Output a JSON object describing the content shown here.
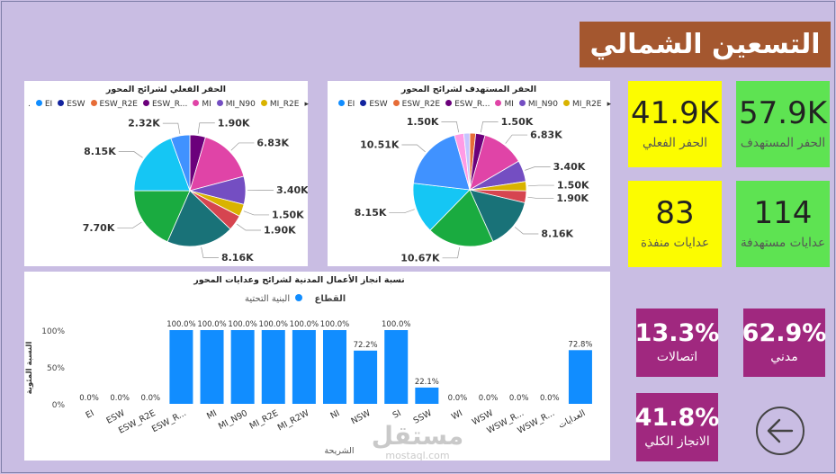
{
  "page_title": "التسعين الشمالي",
  "colors": {
    "EI": "#118dff",
    "ESW": "#12239e",
    "ESW_R2E": "#e66c37",
    "ESW_R2W": "#6b007b",
    "MI": "#e044a7",
    "MI_N90": "#744ec2",
    "MI_R2E": "#d9b300",
    "MI_R2W": "#d64550",
    "NI": "#197278",
    "NSW": "#1aab40",
    "SI": "#15c6f4",
    "SSW": "#4092ff",
    "WI": "#ff9be5",
    "WSW": "#c5c5ff",
    "bar": "#118dff"
  },
  "kpis": [
    {
      "value": "57.9K",
      "label": "الحفر المستهدف"
    },
    {
      "value": "41.9K",
      "label": "الحفر الفعلي"
    },
    {
      "value": "114",
      "label": "عدايات مستهدفة"
    },
    {
      "value": "83",
      "label": "عدايات منفذة"
    },
    {
      "value": "62.9%",
      "label": "مدني"
    },
    {
      "value": "13.3%",
      "label": "اتصالات"
    },
    {
      "value": "41.8%",
      "label": "الانجاز الكلي"
    }
  ],
  "watermark": {
    "main": "مستقل",
    "sub": "mostaql.com"
  },
  "chart_data": [
    {
      "type": "pie",
      "title": "الحفر الفعلي لشرائح المحور",
      "legend_items": [
        "EI",
        "ESW",
        "ESW_R2E",
        "ESW_R...",
        "MI",
        "MI_N90",
        "MI_R2E"
      ],
      "legend_lead": ".",
      "legend_more": "▸",
      "slices": [
        {
          "name": "EI",
          "value": 0,
          "label": ""
        },
        {
          "name": "ESW",
          "value": 0,
          "label": ""
        },
        {
          "name": "ESW_R2E",
          "value": 0,
          "label": ""
        },
        {
          "name": "ESW_R2W",
          "value": 1.9,
          "label": "1.90K"
        },
        {
          "name": "MI",
          "value": 6.83,
          "label": "6.83K"
        },
        {
          "name": "MI_N90",
          "value": 3.4,
          "label": "3.40K"
        },
        {
          "name": "MI_R2E",
          "value": 1.5,
          "label": "1.50K"
        },
        {
          "name": "MI_R2W",
          "value": 1.9,
          "label": "1.90K"
        },
        {
          "name": "NI",
          "value": 8.16,
          "label": "8.16K"
        },
        {
          "name": "NSW",
          "value": 7.7,
          "label": "7.70K"
        },
        {
          "name": "SI",
          "value": 8.15,
          "label": "8.15K"
        },
        {
          "name": "SSW",
          "value": 2.32,
          "label": "2.32K"
        }
      ]
    },
    {
      "type": "pie",
      "title": "الحفر المستهدف لشرائح المحور",
      "legend_items": [
        "EI",
        "ESW",
        "ESW_R2E",
        "ESW_R...",
        "MI",
        "MI_N90",
        "MI_R2E"
      ],
      "legend_lead": "",
      "legend_more": "▸",
      "slices": [
        {
          "name": "EI",
          "value": 0,
          "label": ""
        },
        {
          "name": "ESW",
          "value": 0,
          "label": ""
        },
        {
          "name": "ESW_R2E",
          "value": 0.95,
          "label": ""
        },
        {
          "name": "ESW_R2W",
          "value": 1.5,
          "label": "1.50K"
        },
        {
          "name": "MI",
          "value": 6.83,
          "label": "6.83K"
        },
        {
          "name": "MI_N90",
          "value": 3.4,
          "label": "3.40K"
        },
        {
          "name": "MI_R2E",
          "value": 1.5,
          "label": "1.50K"
        },
        {
          "name": "MI_R2W",
          "value": 1.9,
          "label": "1.90K"
        },
        {
          "name": "NI",
          "value": 8.16,
          "label": "8.16K"
        },
        {
          "name": "NSW",
          "value": 10.67,
          "label": "10.67K"
        },
        {
          "name": "SI",
          "value": 8.15,
          "label": "8.15K"
        },
        {
          "name": "SSW",
          "value": 10.51,
          "label": "10.51K"
        },
        {
          "name": "WI",
          "value": 1.5,
          "label": "1.50K"
        },
        {
          "name": "WSW",
          "value": 0.95,
          "label": ""
        }
      ]
    },
    {
      "type": "bar",
      "title": "نسبة انجاز الأعمال المدنية لشرائح وعدايات المحور",
      "legend_title": "القطاع",
      "series_name": "البنية التحتية",
      "xlabel": "الشريحة",
      "ylabel": "النسبة المئوية",
      "yticks": [
        "0%",
        "50%",
        "100%"
      ],
      "ylim": [
        0,
        100
      ],
      "categories": [
        "EI",
        "ESW",
        "ESW_R2E",
        "ESW_R...",
        "MI",
        "MI_N90",
        "MI_R2E",
        "MI_R2W",
        "NI",
        "NSW",
        "SI",
        "SSW",
        "WI",
        "WSW",
        "WSW_R...",
        "WSW_R...",
        "العدايات"
      ],
      "values": [
        0,
        0,
        0,
        100,
        100,
        100,
        100,
        100,
        100,
        72.2,
        100,
        22.1,
        0,
        0,
        0,
        0,
        72.8
      ],
      "labels": [
        "0.0%",
        "0.0%",
        "0.0%",
        "100.0%",
        "100.0%",
        "100.0%",
        "100.0%",
        "100.0%",
        "100.0%",
        "72.2%",
        "100.0%",
        "22.1%",
        "0.0%",
        "0.0%",
        "0.0%",
        "0.0%",
        "72.8%"
      ]
    }
  ]
}
